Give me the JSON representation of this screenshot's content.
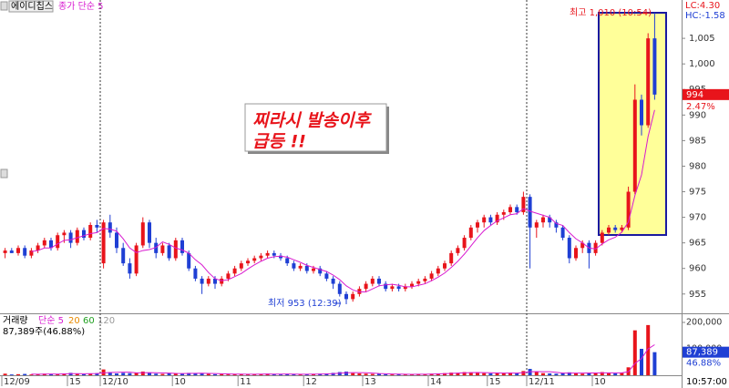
{
  "chart_data": {
    "type": "candlestick",
    "stock_name": "에이디칩스",
    "ma": {
      "label": "종가 단순 5",
      "period": 5,
      "color": "#d81ad0"
    },
    "up_color": "#e8141b",
    "down_color": "#1f3fd4",
    "categories": [
      "12/09",
      null,
      null,
      null,
      null,
      null,
      null,
      null,
      null,
      null,
      "15",
      null,
      null,
      null,
      null,
      "12/10",
      null,
      null,
      null,
      null,
      null,
      null,
      null,
      null,
      null,
      null,
      "10",
      null,
      null,
      null,
      null,
      null,
      null,
      null,
      null,
      null,
      "11",
      null,
      null,
      null,
      null,
      null,
      null,
      null,
      null,
      null,
      "12",
      null,
      null,
      null,
      null,
      null,
      null,
      null,
      null,
      "13",
      null,
      null,
      null,
      null,
      null,
      null,
      null,
      null,
      null,
      "14",
      null,
      null,
      null,
      null,
      null,
      null,
      null,
      null,
      "15",
      null,
      null,
      null,
      null,
      null,
      "12/11",
      null,
      null,
      null,
      null,
      null,
      null,
      null,
      null,
      null,
      "10",
      null,
      null,
      null,
      null,
      null,
      null,
      null,
      null,
      null
    ],
    "ohlc": [
      [
        963,
        964,
        962,
        963.5
      ],
      [
        963.5,
        964,
        963,
        963
      ],
      [
        963,
        964.5,
        962.5,
        964
      ],
      [
        964,
        964.5,
        962,
        962.5
      ],
      [
        962.5,
        964,
        962,
        963.5
      ],
      [
        963.5,
        965,
        963,
        964.5
      ],
      [
        964.5,
        966,
        964,
        965.5
      ],
      [
        965.5,
        966,
        963.5,
        964
      ],
      [
        964,
        967,
        963.5,
        966.5
      ],
      [
        966.5,
        967.5,
        965,
        967
      ],
      [
        967,
        967.5,
        964,
        965
      ],
      [
        965,
        968,
        964.5,
        967.5
      ],
      [
        967.5,
        968,
        965.5,
        966
      ],
      [
        966,
        969,
        965.5,
        968.5
      ],
      [
        968.5,
        969.5,
        967,
        968
      ],
      [
        961,
        969.5,
        960,
        969
      ],
      [
        969,
        970.5,
        966,
        967
      ],
      [
        967,
        968,
        963,
        964
      ],
      [
        964,
        965,
        960.5,
        961
      ],
      [
        961,
        962,
        958,
        959
      ],
      [
        959,
        965,
        958.5,
        964.5
      ],
      [
        964.5,
        970,
        964,
        969
      ],
      [
        969,
        969.5,
        964,
        965
      ],
      [
        965,
        966,
        962,
        963
      ],
      [
        963,
        965,
        962.5,
        964.5
      ],
      [
        964.5,
        965,
        961.5,
        962
      ],
      [
        962,
        966,
        961.5,
        965.5
      ],
      [
        965.5,
        966,
        962.5,
        963
      ],
      [
        963,
        963.5,
        959.5,
        960
      ],
      [
        960,
        960.5,
        957.5,
        958
      ],
      [
        958,
        958.5,
        955,
        957
      ],
      [
        957,
        958.5,
        956.5,
        958
      ],
      [
        958,
        958.5,
        956,
        957
      ],
      [
        957,
        958.5,
        956.5,
        958
      ],
      [
        958,
        959.5,
        957.5,
        959
      ],
      [
        959,
        960.5,
        958.5,
        960
      ],
      [
        960,
        961.5,
        959.5,
        961
      ],
      [
        961,
        962,
        960.5,
        961.5
      ],
      [
        961.5,
        962.5,
        961,
        962
      ],
      [
        962,
        963,
        961.5,
        962.5
      ],
      [
        962.5,
        963.5,
        962,
        963
      ],
      [
        963,
        963.5,
        962,
        962.5
      ],
      [
        962.5,
        963,
        961.5,
        962
      ],
      [
        962,
        962.5,
        960.5,
        961
      ],
      [
        961,
        961.5,
        959.5,
        960
      ],
      [
        960,
        961,
        959.5,
        960.5
      ],
      [
        960.5,
        961,
        959,
        959.5
      ],
      [
        959.5,
        960.5,
        959,
        960
      ],
      [
        960,
        960.5,
        958.5,
        959
      ],
      [
        959,
        959.5,
        957.5,
        958
      ],
      [
        958,
        958.5,
        956,
        957
      ],
      [
        957,
        957.5,
        954.5,
        955
      ],
      [
        955,
        955.5,
        953,
        954
      ],
      [
        954,
        955.5,
        953.5,
        955
      ],
      [
        955,
        956.5,
        954.5,
        956
      ],
      [
        956,
        957.5,
        955.5,
        957
      ],
      [
        957,
        958.5,
        956.5,
        958
      ],
      [
        958,
        958.5,
        956.5,
        957
      ],
      [
        957,
        957.5,
        955.5,
        956
      ],
      [
        956,
        957,
        955.5,
        956.5
      ],
      [
        956.5,
        957,
        955.5,
        956
      ],
      [
        956,
        957,
        955.5,
        956.5
      ],
      [
        956.5,
        957.5,
        956,
        957
      ],
      [
        957,
        958,
        956.5,
        957.5
      ],
      [
        957.5,
        958.5,
        957,
        958
      ],
      [
        958,
        959.5,
        957.5,
        959
      ],
      [
        959,
        960.5,
        958.5,
        960
      ],
      [
        960,
        961.5,
        959.5,
        961
      ],
      [
        961,
        963.5,
        960.5,
        963
      ],
      [
        963,
        964.5,
        962.5,
        964
      ],
      [
        964,
        966.5,
        963.5,
        966
      ],
      [
        966,
        968.5,
        965.5,
        968
      ],
      [
        968,
        969.5,
        967,
        969
      ],
      [
        969,
        970.5,
        968,
        970
      ],
      [
        970,
        970.5,
        968.5,
        969
      ],
      [
        969,
        971,
        968.5,
        970.5
      ],
      [
        970.5,
        971.5,
        969.5,
        971
      ],
      [
        971,
        972.5,
        970.5,
        972
      ],
      [
        972,
        972.5,
        970.5,
        971
      ],
      [
        971,
        975,
        970.5,
        974
      ],
      [
        974,
        974.5,
        960,
        968
      ],
      [
        968,
        969.5,
        966,
        969
      ],
      [
        969,
        970.5,
        968,
        970
      ],
      [
        970,
        970.5,
        968,
        969
      ],
      [
        969,
        969.5,
        967,
        968
      ],
      [
        968,
        968.5,
        965.5,
        966
      ],
      [
        966,
        966.5,
        961,
        962
      ],
      [
        962,
        964.5,
        961.5,
        964
      ],
      [
        964,
        965.5,
        963,
        965
      ],
      [
        965,
        965.5,
        960,
        963
      ],
      [
        963,
        965.5,
        962.5,
        965
      ],
      [
        965,
        967.5,
        964.5,
        967
      ],
      [
        967,
        968.5,
        966.5,
        968
      ],
      [
        968,
        968.5,
        967,
        967.5
      ],
      [
        967.5,
        968.5,
        967,
        968
      ],
      [
        968,
        976,
        967.5,
        975
      ],
      [
        975,
        996,
        974.5,
        993
      ],
      [
        993,
        994,
        986,
        988
      ],
      [
        988,
        1006,
        987.5,
        1005
      ],
      [
        1005,
        1010,
        993,
        994
      ]
    ],
    "ylim": [
      951.4,
      1012.5
    ],
    "yticks": [
      955,
      960,
      965,
      970,
      975,
      980,
      985,
      990,
      995,
      {
        "value": 1000,
        "label": "1,000"
      },
      {
        "value": 1005,
        "label": "1,005"
      }
    ],
    "high_note": "최고 1,010 (10:54)",
    "low_note": "최저 953 (12:39)",
    "lc": "LC:4.30",
    "hc": "HC:-1.58",
    "price_change": {
      "value": 2.47,
      "label": "2.47%"
    },
    "callout": [
      "찌라시 발송이후",
      "급등 !!"
    ],
    "volume": {
      "header": [
        "거래량",
        "단순 5",
        "20",
        "60",
        "120"
      ],
      "summary": "87,389주(46.88%)",
      "values": [
        6000,
        3000,
        4000,
        5000,
        3000,
        4000,
        6000,
        5000,
        4000,
        7000,
        9000,
        5000,
        4000,
        6000,
        8000,
        22000,
        12000,
        7000,
        9000,
        8000,
        10000,
        14000,
        9000,
        6000,
        5000,
        7000,
        8000,
        6000,
        9000,
        7000,
        8000,
        5000,
        4000,
        5000,
        3000,
        4000,
        5000,
        3000,
        4000,
        5000,
        6000,
        4000,
        3000,
        5000,
        4000,
        3000,
        5000,
        4000,
        6000,
        7000,
        9000,
        12000,
        14000,
        8000,
        7000,
        6000,
        5000,
        6000,
        4000,
        3000,
        4000,
        3000,
        4000,
        5000,
        4000,
        6000,
        7000,
        8000,
        10000,
        9000,
        12000,
        11000,
        9000,
        8000,
        7000,
        8000,
        9000,
        10000,
        7000,
        16000,
        24000,
        12000,
        8000,
        7000,
        6000,
        9000,
        11000,
        8000,
        6000,
        10000,
        9000,
        12000,
        8000,
        7000,
        9000,
        30000,
        170000,
        100000,
        190000,
        87389
      ],
      "last_label": "87,389",
      "ratio_label": "46.88%",
      "ylim": [
        0,
        231000
      ],
      "yticks": [
        {
          "value": 100000,
          "label": "100,000"
        },
        {
          "value": 200000,
          "label": "200,000"
        }
      ]
    },
    "time": "10:57:00"
  }
}
